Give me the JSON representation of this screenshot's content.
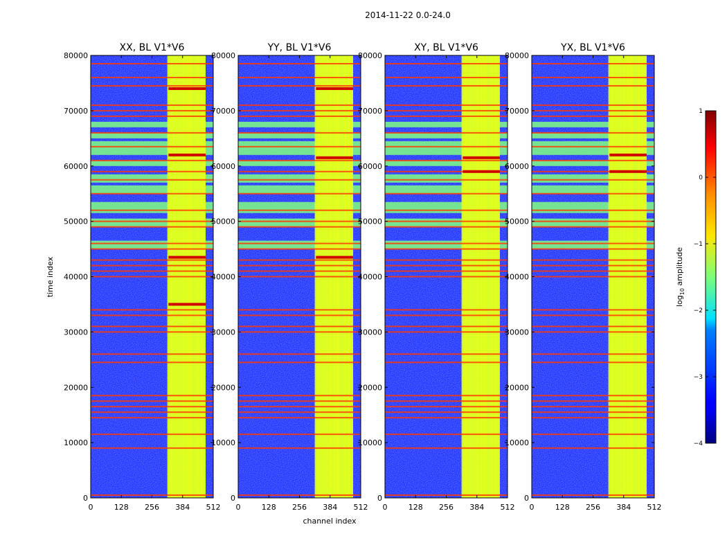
{
  "suptitle": "2014-11-22 0.0-24.0",
  "x_axis_label": "channel index",
  "y_axis_label": "time index",
  "colorbar": {
    "label_main": "log",
    "label_sub": "10",
    "label_rest": " amplitude",
    "range": [
      -4,
      1
    ],
    "ticks": [
      "−4",
      "−3",
      "−2",
      "−1",
      "0",
      "1"
    ],
    "tick_values": [
      -4,
      -3,
      -2,
      -1,
      0,
      1
    ],
    "colormap": "jet"
  },
  "chart_data": [
    {
      "type": "heatmap",
      "title": "XX, BL V1*V6",
      "xlabel": "channel index",
      "ylabel": "time index",
      "xlim": [
        0,
        512
      ],
      "ylim": [
        0,
        80000
      ],
      "x_ticks": [
        "0",
        "128",
        "256",
        "384",
        "512"
      ],
      "x_tick_values": [
        0,
        128,
        256,
        384,
        512
      ],
      "y_ticks": [
        "0",
        "10000",
        "20000",
        "30000",
        "40000",
        "50000",
        "60000",
        "70000",
        "80000"
      ],
      "y_tick_values": [
        0,
        10000,
        20000,
        30000,
        40000,
        50000,
        60000,
        70000,
        80000
      ],
      "background_log10_amplitude": -3.3,
      "band_channel_range": [
        325,
        480
      ],
      "band_log10_amplitude": -1.0,
      "rfi_channel_columns": [
        330,
        345,
        362,
        380,
        395,
        410,
        420,
        440,
        455,
        470
      ],
      "bright_time_rows": [
        35000,
        43500,
        62000,
        74000
      ],
      "flagged_time_rows": [
        500,
        9000,
        11500,
        14500,
        15500,
        16500,
        17500,
        18500,
        24500,
        26000,
        30000,
        31000,
        33000,
        34000,
        40000,
        41000,
        42000,
        43000,
        45000,
        46000,
        49000,
        50000,
        52000,
        55000,
        57500,
        59000,
        61000,
        63500,
        66000,
        69000,
        70000,
        71000,
        74500,
        76000,
        78500
      ],
      "mid_level_time_bands": [
        [
          45000,
          46500
        ],
        [
          49000,
          50500
        ],
        [
          51500,
          53500
        ],
        [
          55000,
          56500
        ],
        [
          57000,
          58500
        ],
        [
          60000,
          61000
        ],
        [
          62000,
          64500
        ],
        [
          65000,
          66000
        ],
        [
          67000,
          68000
        ]
      ]
    },
    {
      "type": "heatmap",
      "title": "YY, BL V1*V6",
      "xlabel": "channel index",
      "ylabel": "time index",
      "xlim": [
        0,
        512
      ],
      "ylim": [
        0,
        80000
      ],
      "x_ticks": [
        "0",
        "128",
        "256",
        "384",
        "512"
      ],
      "x_tick_values": [
        0,
        128,
        256,
        384,
        512
      ],
      "y_ticks": [
        "0",
        "10000",
        "20000",
        "30000",
        "40000",
        "50000",
        "60000",
        "70000",
        "80000"
      ],
      "y_tick_values": [
        0,
        10000,
        20000,
        30000,
        40000,
        50000,
        60000,
        70000,
        80000
      ],
      "background_log10_amplitude": -3.3,
      "band_channel_range": [
        325,
        480
      ],
      "band_log10_amplitude": -1.0,
      "rfi_channel_columns": [
        330,
        345,
        362,
        380,
        395,
        410,
        420,
        440,
        455,
        470
      ],
      "bright_time_rows": [
        43500,
        61500,
        74000
      ],
      "flagged_time_rows": [
        500,
        9000,
        11500,
        14500,
        15500,
        16500,
        17500,
        18500,
        24500,
        26000,
        30000,
        31000,
        33000,
        34000,
        40000,
        41000,
        42000,
        43000,
        45000,
        46000,
        49000,
        50000,
        52000,
        55000,
        57500,
        59000,
        61000,
        63500,
        66000,
        69000,
        70000,
        71000,
        74500,
        76000,
        78500
      ],
      "mid_level_time_bands": [
        [
          45000,
          46500
        ],
        [
          49000,
          50500
        ],
        [
          51500,
          53500
        ],
        [
          55000,
          56500
        ],
        [
          57000,
          58500
        ],
        [
          60000,
          61000
        ],
        [
          62000,
          64500
        ],
        [
          65000,
          66000
        ],
        [
          67000,
          68000
        ]
      ]
    },
    {
      "type": "heatmap",
      "title": "XY, BL V1*V6",
      "xlabel": "channel index",
      "ylabel": "time index",
      "xlim": [
        0,
        512
      ],
      "ylim": [
        0,
        80000
      ],
      "x_ticks": [
        "0",
        "128",
        "256",
        "384",
        "512"
      ],
      "x_tick_values": [
        0,
        128,
        256,
        384,
        512
      ],
      "y_ticks": [
        "0",
        "10000",
        "20000",
        "30000",
        "40000",
        "50000",
        "60000",
        "70000",
        "80000"
      ],
      "y_tick_values": [
        0,
        10000,
        20000,
        30000,
        40000,
        50000,
        60000,
        70000,
        80000
      ],
      "background_log10_amplitude": -3.3,
      "band_channel_range": [
        325,
        480
      ],
      "band_log10_amplitude": -1.0,
      "rfi_channel_columns": [
        330,
        345,
        362,
        380,
        395,
        410,
        420,
        440,
        455,
        470
      ],
      "bright_time_rows": [
        59000,
        61500
      ],
      "flagged_time_rows": [
        500,
        9000,
        11500,
        14500,
        15500,
        16500,
        17500,
        18500,
        24500,
        26000,
        30000,
        31000,
        33000,
        34000,
        40000,
        41000,
        42000,
        43000,
        45000,
        46000,
        49000,
        50000,
        52000,
        55000,
        57500,
        59000,
        61000,
        63500,
        66000,
        69000,
        70000,
        71000,
        74500,
        76000,
        78500
      ],
      "mid_level_time_bands": [
        [
          45000,
          46500
        ],
        [
          49000,
          50500
        ],
        [
          51500,
          53500
        ],
        [
          55000,
          56500
        ],
        [
          57000,
          58500
        ],
        [
          60000,
          61000
        ],
        [
          62000,
          64500
        ],
        [
          65000,
          66000
        ],
        [
          67000,
          68000
        ]
      ]
    },
    {
      "type": "heatmap",
      "title": "YX, BL V1*V6",
      "xlabel": "channel index",
      "ylabel": "time index",
      "xlim": [
        0,
        512
      ],
      "ylim": [
        0,
        80000
      ],
      "x_ticks": [
        "0",
        "128",
        "256",
        "384",
        "512"
      ],
      "x_tick_values": [
        0,
        128,
        256,
        384,
        512
      ],
      "y_ticks": [
        "0",
        "10000",
        "20000",
        "30000",
        "40000",
        "50000",
        "60000",
        "70000",
        "80000"
      ],
      "y_tick_values": [
        0,
        10000,
        20000,
        30000,
        40000,
        50000,
        60000,
        70000,
        80000
      ],
      "background_log10_amplitude": -3.3,
      "band_channel_range": [
        325,
        480
      ],
      "band_log10_amplitude": -1.0,
      "rfi_channel_columns": [
        330,
        345,
        362,
        380,
        395,
        410,
        420,
        440,
        455,
        470
      ],
      "bright_time_rows": [
        59000,
        62000
      ],
      "flagged_time_rows": [
        500,
        9000,
        11500,
        14500,
        15500,
        16500,
        17500,
        18500,
        24500,
        26000,
        30000,
        31000,
        33000,
        34000,
        40000,
        41000,
        42000,
        43000,
        45000,
        46000,
        49000,
        50000,
        52000,
        55000,
        57500,
        59000,
        61000,
        63500,
        66000,
        69000,
        70000,
        71000,
        74500,
        76000,
        78500
      ],
      "mid_level_time_bands": [
        [
          45000,
          46500
        ],
        [
          49000,
          50500
        ],
        [
          51500,
          53500
        ],
        [
          55000,
          56500
        ],
        [
          57000,
          58500
        ],
        [
          60000,
          61000
        ],
        [
          62000,
          64500
        ],
        [
          65000,
          66000
        ],
        [
          67000,
          68000
        ]
      ]
    }
  ]
}
